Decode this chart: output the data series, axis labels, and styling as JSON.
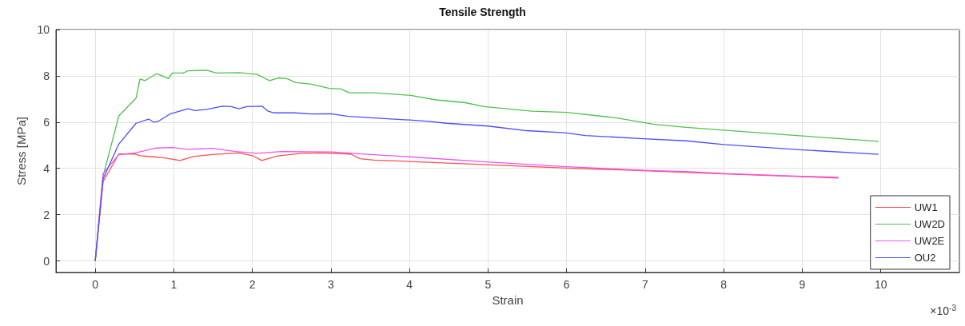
{
  "chart_data": {
    "type": "line",
    "title": "Tensile Strength",
    "xlabel": "Strain",
    "ylabel": "Stress [MPa]",
    "annotations": [
      "×10$^{-3}$"
    ],
    "xlim": [
      -0.5,
      11
    ],
    "xticks": [
      0,
      1,
      2,
      3,
      4,
      5,
      6,
      7,
      8,
      9,
      10
    ],
    "ylim": [
      -0.5,
      10
    ],
    "yticks": [
      0,
      2,
      4,
      6,
      8,
      10
    ],
    "grid": true,
    "legend": "bottom right",
    "line_style": "solid",
    "marker": "none",
    "series": [
      {
        "name": "UW1",
        "color": "#ff4d4d",
        "x": [
          0,
          0.1,
          0.3,
          0.51,
          0.57,
          0.74,
          0.85,
          1.08,
          1.25,
          1.52,
          1.83,
          2.0,
          2.12,
          2.31,
          2.62,
          2.88,
          3.25,
          3.37,
          3.55,
          4,
          4.98,
          6,
          6.98,
          8,
          9,
          9.46
        ],
        "values": [
          0,
          3.43,
          4.62,
          4.62,
          4.55,
          4.5,
          4.47,
          4.34,
          4.51,
          4.61,
          4.67,
          4.55,
          4.34,
          4.53,
          4.65,
          4.67,
          4.62,
          4.42,
          4.36,
          4.3,
          4.16,
          4.01,
          3.9,
          3.76,
          3.64,
          3.58
        ]
      },
      {
        "name": "UW2D",
        "color": "#4cc24c",
        "x": [
          0,
          0.1,
          0.3,
          0.52,
          0.57,
          0.63,
          0.78,
          0.85,
          0.93,
          0.98,
          1.12,
          1.18,
          1.42,
          1.54,
          1.83,
          2.06,
          2.22,
          2.33,
          2.44,
          2.55,
          2.74,
          2.98,
          3.13,
          3.23,
          3.55,
          4,
          4.34,
          4.71,
          4.95,
          5.56,
          6,
          6.64,
          7.1,
          7.52,
          8,
          9,
          9.97
        ],
        "values": [
          0,
          3.66,
          6.27,
          7.04,
          7.86,
          7.79,
          8.09,
          8.0,
          7.88,
          8.12,
          8.12,
          8.22,
          8.24,
          8.12,
          8.14,
          8.06,
          7.79,
          7.91,
          7.88,
          7.71,
          7.65,
          7.46,
          7.43,
          7.27,
          7.27,
          7.16,
          6.96,
          6.84,
          6.67,
          6.47,
          6.42,
          6.18,
          5.91,
          5.77,
          5.65,
          5.4,
          5.17
        ]
      },
      {
        "name": "UW2E",
        "color": "#ee55ee",
        "x": [
          0,
          0.1,
          0.3,
          0.51,
          0.78,
          0.98,
          1.18,
          1.49,
          1.79,
          2.06,
          2.37,
          3.01,
          3.55,
          4,
          4.98,
          6,
          6.98,
          7.52,
          8,
          9,
          9.46
        ],
        "values": [
          0,
          3.78,
          4.59,
          4.67,
          4.88,
          4.9,
          4.82,
          4.87,
          4.73,
          4.65,
          4.73,
          4.71,
          4.59,
          4.5,
          4.28,
          4.07,
          3.92,
          3.86,
          3.78,
          3.66,
          3.61
        ]
      },
      {
        "name": "OU2",
        "color": "#4d4dff",
        "x": [
          0,
          0.1,
          0.3,
          0.52,
          0.68,
          0.74,
          0.8,
          0.95,
          1.18,
          1.27,
          1.42,
          1.62,
          1.73,
          1.83,
          1.93,
          2.12,
          2.2,
          2.27,
          2.54,
          2.74,
          3.0,
          3.22,
          3.55,
          4,
          4.24,
          4.47,
          5,
          5.49,
          5.97,
          6.24,
          6.98,
          7.52,
          8,
          9,
          9.97
        ],
        "values": [
          0,
          3.55,
          5.05,
          5.95,
          6.13,
          6.0,
          6.03,
          6.35,
          6.58,
          6.5,
          6.55,
          6.69,
          6.67,
          6.58,
          6.67,
          6.69,
          6.47,
          6.4,
          6.4,
          6.35,
          6.36,
          6.25,
          6.18,
          6.09,
          6.03,
          5.95,
          5.83,
          5.63,
          5.54,
          5.42,
          5.28,
          5.19,
          5.03,
          4.8,
          4.61
        ]
      }
    ]
  }
}
